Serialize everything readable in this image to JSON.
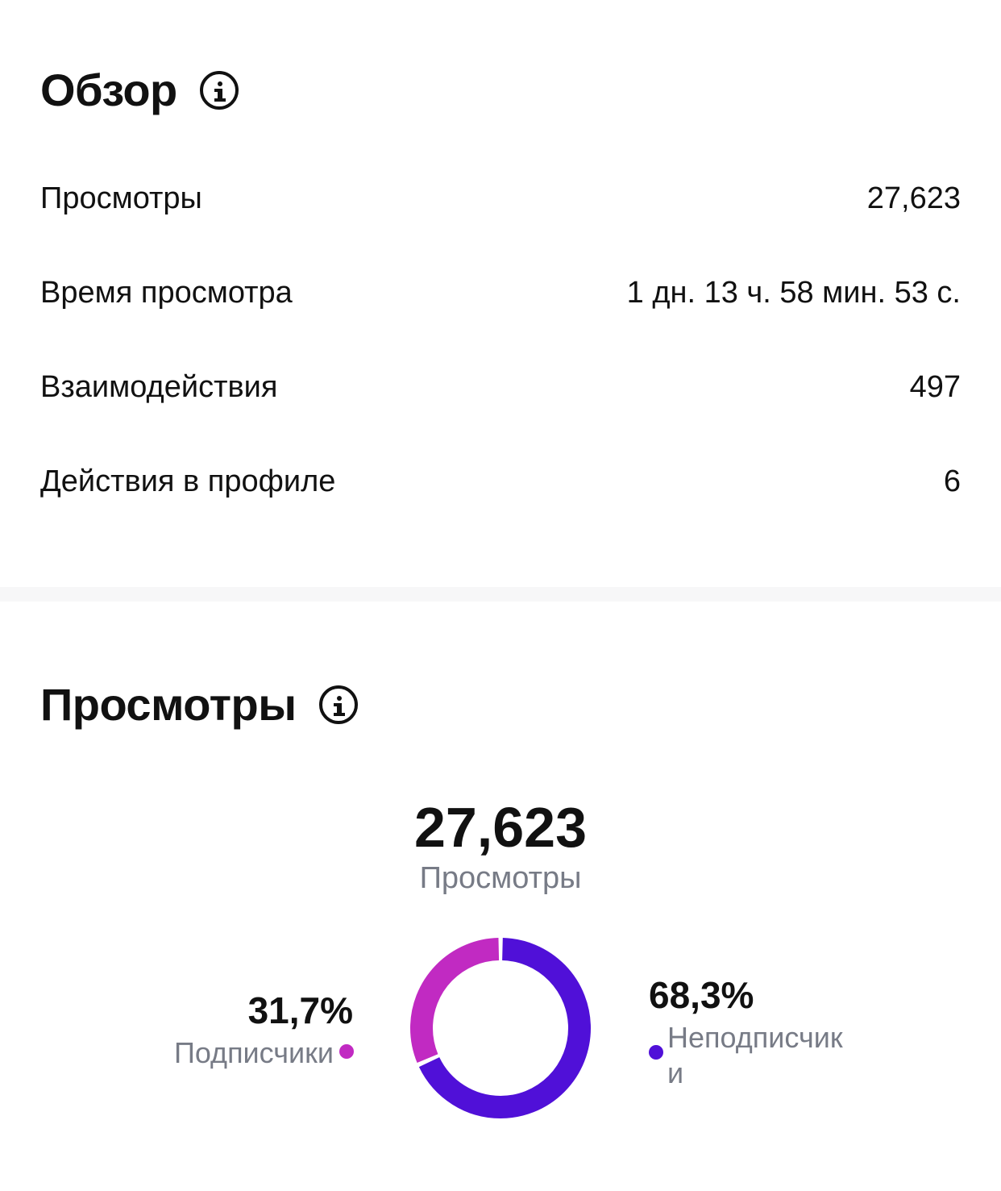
{
  "overview": {
    "title": "Обзор",
    "rows": [
      {
        "label": "Просмотры",
        "value": "27,623"
      },
      {
        "label": "Время просмотра",
        "value": "1 дн. 13 ч. 58 мин. 53 с."
      },
      {
        "label": "Взаимодействия",
        "value": "497"
      },
      {
        "label": "Действия в профиле",
        "value": "6"
      }
    ]
  },
  "views": {
    "title": "Просмотры",
    "total": "27,623",
    "total_label": "Просмотры",
    "followers": {
      "percent": "31,7%",
      "label": "Подписчики",
      "color": "#c12ac2"
    },
    "non_followers": {
      "percent": "68,3%",
      "label": "Неподписчик\nи",
      "color": "#5010d8"
    }
  },
  "chart_data": {
    "type": "pie",
    "categories": [
      "Подписчики",
      "Неподписчики"
    ],
    "values": [
      31.7,
      68.3
    ],
    "colors": [
      "#c12ac2",
      "#5010d8"
    ]
  }
}
